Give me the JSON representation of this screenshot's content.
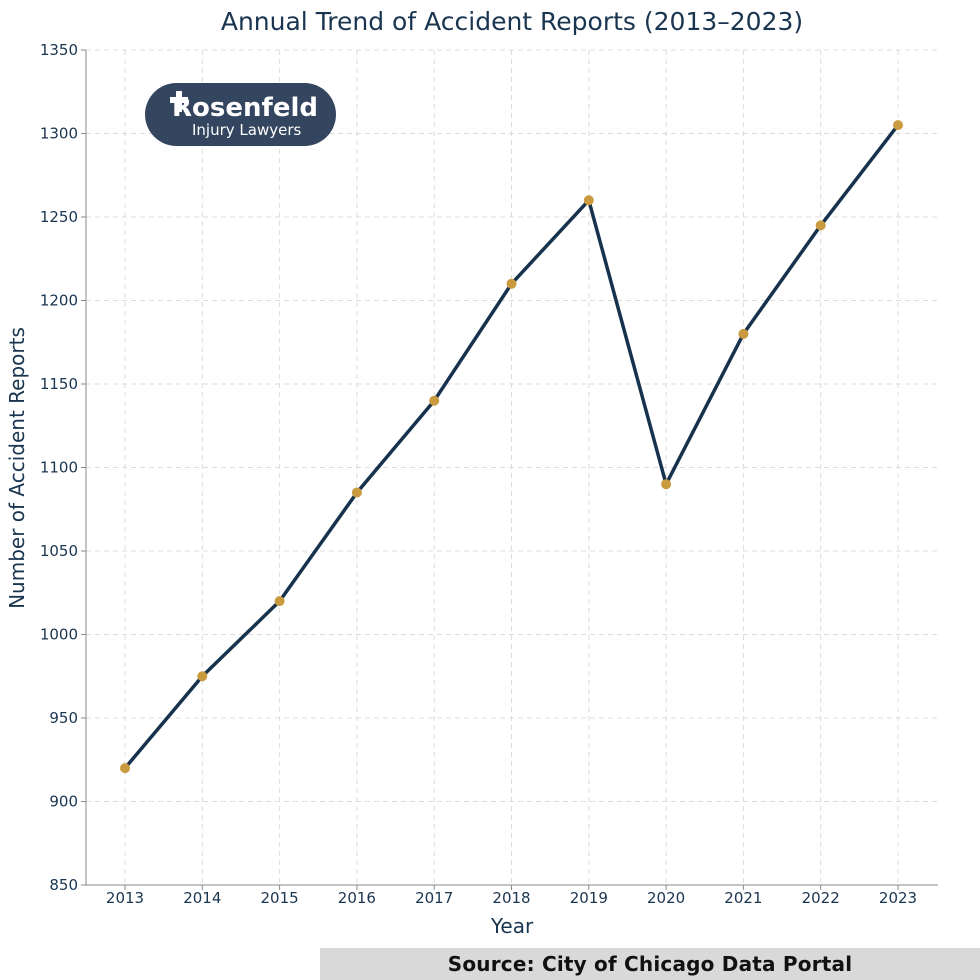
{
  "chart_data": {
    "type": "line",
    "title": "Annual Trend of Accident Reports (2013–2023)",
    "xlabel": "Year",
    "ylabel": "Number of Accident Reports",
    "x": [
      "2013",
      "2014",
      "2015",
      "2016",
      "2017",
      "2018",
      "2019",
      "2020",
      "2021",
      "2022",
      "2023"
    ],
    "series": [
      {
        "name": "Accident Reports",
        "values": [
          920,
          975,
          1020,
          1085,
          1140,
          1210,
          1260,
          1090,
          1180,
          1245,
          1305
        ]
      }
    ],
    "ylim": [
      850,
      1350
    ],
    "yticks": [
      850,
      900,
      950,
      1000,
      1050,
      1100,
      1150,
      1200,
      1250,
      1300,
      1350
    ],
    "grid": true,
    "line_color": "#17324d",
    "marker_color": "#c99a3e"
  },
  "logo": {
    "wordmark": "Rosenfeld",
    "subtext": "Injury Lawyers",
    "background_color": "#344560"
  },
  "source": {
    "label": "Source: City of Chicago Data Portal"
  }
}
